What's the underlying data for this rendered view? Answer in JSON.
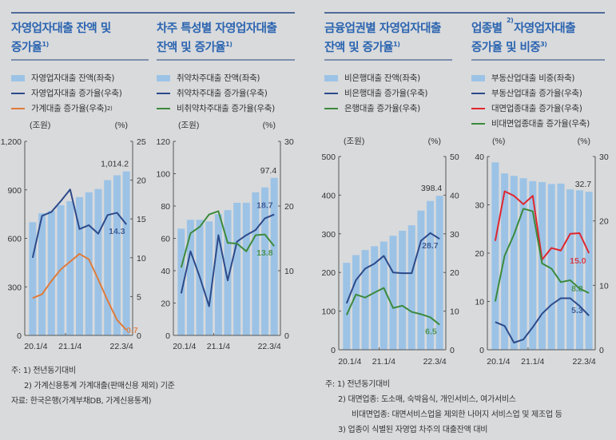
{
  "colors": {
    "bar": "#9cc3e6",
    "blue": "#2d4a8a",
    "orange": "#e07b39",
    "green": "#3c8a3c",
    "red": "#e0262f",
    "title": "#2a64b0"
  },
  "panels": [
    {
      "title_lines": [
        "자영업자대출 잔액 및",
        "증가율"
      ],
      "title_sup": "1)",
      "legend": [
        {
          "label": "자영업자대출 잔액(좌축)",
          "type": "bar",
          "color": "#9cc3e6"
        },
        {
          "label": "자영업자대출 증가율(우축)",
          "type": "line",
          "color": "#2d4a8a"
        },
        {
          "label": "가계대출 증가율(우축)",
          "sup": "2)",
          "type": "line",
          "color": "#e07b39"
        }
      ]
    },
    {
      "title_lines": [
        "차주 특성별 자영업자대출",
        "잔액 및 증가율"
      ],
      "title_sup": "1)",
      "legend": [
        {
          "label": "취약차주대출 잔액(좌축)",
          "type": "bar",
          "color": "#9cc3e6"
        },
        {
          "label": "취약차주대출 증가율(우축)",
          "type": "line",
          "color": "#2d4a8a"
        },
        {
          "label": "비취약차주대출 증가율(우축)",
          "type": "line",
          "color": "#3c8a3c"
        }
      ]
    },
    {
      "title_lines": [
        "금융업권별 자영업자대출",
        "잔액 및 증가율"
      ],
      "title_sup": "1)",
      "legend": [
        {
          "label": "비은행대출 잔액(좌축)",
          "type": "bar",
          "color": "#9cc3e6"
        },
        {
          "label": "비은행대출 증가율(우축)",
          "type": "line",
          "color": "#2d4a8a"
        },
        {
          "label": "은행대출 증가율(우축)",
          "type": "line",
          "color": "#3c8a3c"
        }
      ]
    },
    {
      "title_lines": [
        "업종별 자영업자대출",
        "증가율 및 비중"
      ],
      "title_sup_first": "2)",
      "title_sup": "3)",
      "legend": [
        {
          "label": "부동산업대출 비중(좌축)",
          "type": "bar",
          "color": "#9cc3e6"
        },
        {
          "label": "부동산업대출 증가율(우축)",
          "type": "line",
          "color": "#2d4a8a"
        },
        {
          "label": "대면업종대출 증가율(우축)",
          "type": "line",
          "color": "#e0262f"
        },
        {
          "label": "비대면업종대출 증가율(우축)",
          "type": "line",
          "color": "#3c8a3c"
        }
      ]
    }
  ],
  "chart_data": [
    {
      "type": "bar+line",
      "categories": [
        "20.1/4",
        "20.2/4",
        "20.3/4",
        "20.4/4",
        "21.1/4",
        "21.2/4",
        "21.3/4",
        "21.4/4",
        "22.1/4",
        "22.2/4",
        "22.3/4"
      ],
      "x_tick_labels": [
        "20.1/4",
        "21.1/4",
        "22.3/4"
      ],
      "left_unit": "(조원)",
      "right_unit": "(%)",
      "ylim_left": [
        0,
        1200
      ],
      "ylim_right": [
        0,
        25
      ],
      "left_ticks": [
        "0",
        "300",
        "600",
        "900",
        "1,200"
      ],
      "right_ticks": [
        "0",
        "5",
        "10",
        "15",
        "20",
        "25"
      ],
      "bars": {
        "name": "자영업자대출 잔액(좌축)",
        "values": [
          700,
          755,
          770,
          805,
          830,
          855,
          885,
          905,
          960,
          990,
          1014.2
        ],
        "end_label": "1,014.2"
      },
      "lines": [
        {
          "name": "자영업자대출 증가율(우축)",
          "color": "#2d4a8a",
          "values": [
            10.0,
            15.4,
            15.9,
            17.3,
            18.8,
            13.7,
            14.2,
            13.1,
            15.5,
            15.8,
            14.3
          ],
          "end_label": "14.3"
        },
        {
          "name": "가계대출 증가율(우축)",
          "color": "#e07b39",
          "values": [
            4.8,
            5.3,
            7.0,
            8.5,
            9.5,
            10.5,
            9.8,
            7.2,
            4.5,
            2.0,
            0.7
          ],
          "end_label": "0.7"
        }
      ]
    },
    {
      "type": "bar+line",
      "categories": [
        "20.1/4",
        "20.2/4",
        "20.3/4",
        "20.4/4",
        "21.1/4",
        "21.2/4",
        "21.3/4",
        "21.4/4",
        "22.1/4",
        "22.2/4",
        "22.3/4"
      ],
      "x_tick_labels": [
        "20.1/4",
        "21.1/4",
        "22.3/4"
      ],
      "left_unit": "(조원)",
      "right_unit": "(%)",
      "ylim_left": [
        0,
        120
      ],
      "ylim_right": [
        0,
        30
      ],
      "left_ticks": [
        "0",
        "20",
        "40",
        "60",
        "80",
        "100",
        "120"
      ],
      "right_ticks": [
        "0",
        "10",
        "20",
        "30"
      ],
      "bars": {
        "name": "취약차주대출 잔액(좌축)",
        "values": [
          66,
          71.5,
          71.5,
          70.5,
          75,
          77.5,
          82,
          82,
          88.5,
          91.5,
          97.4
        ],
        "end_label": "97.4"
      },
      "lines": [
        {
          "name": "취약차주대출 증가율(우축)",
          "color": "#2d4a8a",
          "values": [
            6.5,
            13.0,
            9.0,
            4.5,
            15.5,
            8.5,
            14.5,
            15.5,
            16.3,
            18.1,
            18.7
          ],
          "end_label": "18.7"
        },
        {
          "name": "비취약차주대출 증가율(우축)",
          "color": "#3c8a3c",
          "values": [
            10.5,
            15.8,
            16.8,
            18.7,
            19.2,
            14.3,
            14.2,
            13.0,
            15.5,
            15.6,
            13.8
          ],
          "end_label": "13.8"
        }
      ]
    },
    {
      "type": "bar+line",
      "categories": [
        "20.1/4",
        "20.2/4",
        "20.3/4",
        "20.4/4",
        "21.1/4",
        "21.2/4",
        "21.3/4",
        "21.4/4",
        "22.1/4",
        "22.2/4",
        "22.3/4"
      ],
      "x_tick_labels": [
        "20.1/4",
        "21.1/4",
        "22.3/4"
      ],
      "left_unit": "(조원)",
      "right_unit": "(%)",
      "ylim_left": [
        0,
        500
      ],
      "ylim_right": [
        0,
        50
      ],
      "left_ticks": [
        "0",
        "100",
        "200",
        "300",
        "400",
        "500"
      ],
      "right_ticks": [
        "0",
        "10",
        "20",
        "30",
        "40",
        "50"
      ],
      "bars": {
        "name": "비은행대출 잔액(좌축)",
        "values": [
          225,
          245,
          258,
          268,
          280,
          295,
          308,
          322,
          360,
          385,
          398.4
        ],
        "end_label": "398.4"
      },
      "lines": [
        {
          "name": "비은행대출 증가율(우축)",
          "color": "#2d4a8a",
          "values": [
            12.0,
            18.0,
            21.0,
            22.3,
            24.3,
            20.0,
            19.8,
            19.8,
            28.2,
            30.2,
            28.7
          ],
          "end_label": "28.7"
        },
        {
          "name": "은행대출 증가율(우축)",
          "color": "#3c8a3c",
          "values": [
            9.0,
            14.3,
            13.5,
            14.8,
            16.0,
            10.8,
            11.4,
            9.8,
            9.2,
            8.4,
            6.5
          ],
          "end_label": "6.5"
        }
      ]
    },
    {
      "type": "bar+line",
      "categories": [
        "20.1/4",
        "20.2/4",
        "20.3/4",
        "20.4/4",
        "21.1/4",
        "21.2/4",
        "21.3/4",
        "21.4/4",
        "22.1/4",
        "22.2/4",
        "22.3/4"
      ],
      "x_tick_labels": [
        "20.1/4",
        "21.1/4",
        "22.3/4"
      ],
      "left_unit": "(%)",
      "right_unit": "(%)",
      "ylim_left": [
        0,
        40
      ],
      "ylim_right": [
        0,
        30
      ],
      "left_ticks": [
        "0",
        "10",
        "20",
        "30",
        "40"
      ],
      "right_ticks": [
        "0",
        "10",
        "20",
        "30"
      ],
      "bars": {
        "name": "부동산업대출 비중(좌축)",
        "values": [
          38.8,
          36.5,
          36.0,
          35.5,
          34.9,
          34.7,
          34.3,
          34.4,
          33.2,
          33.0,
          32.7
        ],
        "end_label": "32.7"
      },
      "lines": [
        {
          "name": "대면업종대출 증가율(우축)",
          "color": "#e0262f",
          "values": [
            16.9,
            24.6,
            23.9,
            22.6,
            23.9,
            14.0,
            15.8,
            15.4,
            18.0,
            18.1,
            15.0
          ],
          "end_label": "15.0"
        },
        {
          "name": "비대면업종대출 증가율(우축)",
          "color": "#3c8a3c",
          "values": [
            7.5,
            14.6,
            17.9,
            21.9,
            21.5,
            13.4,
            12.6,
            10.5,
            10.8,
            9.5,
            8.8
          ],
          "end_label": "8.8"
        },
        {
          "name": "부동산업대출 증가율(우축)",
          "color": "#2d4a8a",
          "values": [
            4.3,
            3.7,
            1.1,
            1.6,
            3.5,
            5.6,
            7.0,
            8.0,
            8.0,
            6.8,
            5.3
          ],
          "end_label": "5.3"
        }
      ]
    }
  ],
  "notes_left": [
    "주: 1) 전년동기대비",
    "2) 가계신용통계 가계대출(판매신용 제외) 기준",
    "자료: 한국은행(가계부채DB, 가계신용통계)"
  ],
  "notes_right": [
    "주: 1) 전년동기대비",
    "2) 대면업종: 도소매, 숙박음식, 개인서비스, 여가서비스",
    "비대면업종: 대면서비스업을 제외한 나머지 서비스업 및 제조업 등",
    "3) 업종이 식별된 자영업 차주의 대출잔액 대비"
  ]
}
